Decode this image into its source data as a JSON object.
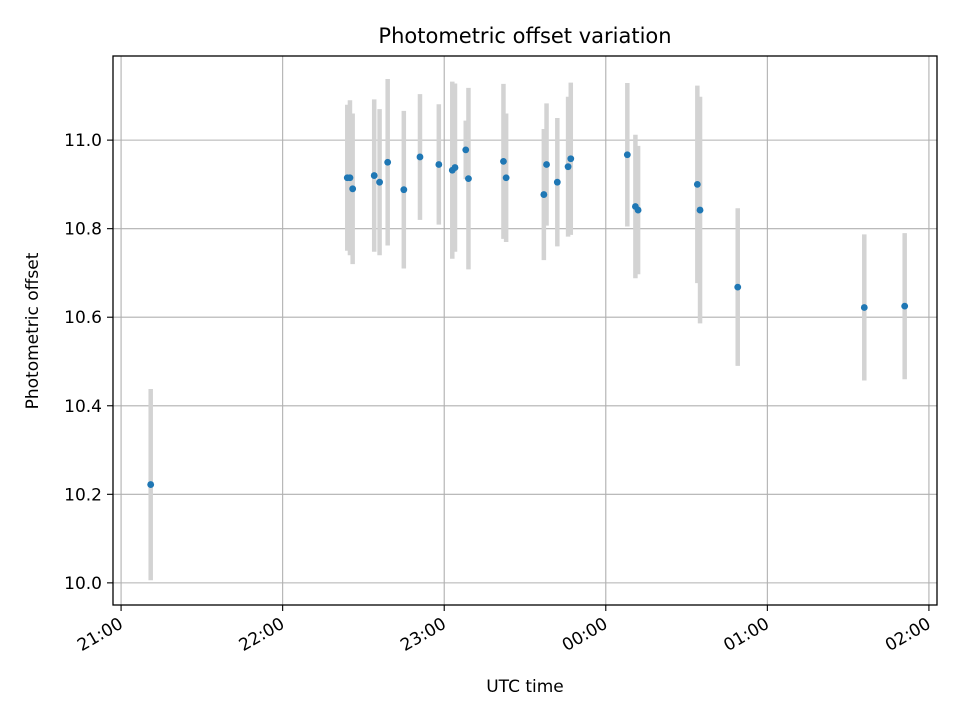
{
  "chart_data": {
    "type": "scatter",
    "title": "Photometric offset variation",
    "xlabel": "UTC time",
    "ylabel": "Photometric offset",
    "x_ticks": [
      "21:00",
      "22:00",
      "23:00",
      "00:00",
      "01:00",
      "02:00"
    ],
    "y_ticks": [
      "10.0",
      "10.2",
      "10.4",
      "10.6",
      "10.8",
      "11.0"
    ],
    "xlim": [
      "20:57",
      "02:03"
    ],
    "ylim": [
      9.95,
      11.19
    ],
    "grid": true,
    "colors": {
      "point": "#1f77b4",
      "errorbar": "#d3d3d3",
      "grid": "#b0b0b0",
      "axes": "#000000"
    },
    "series": [
      {
        "points": [
          {
            "x": "21:11",
            "y": 10.222,
            "err": 0.216
          },
          {
            "x": "22:24",
            "y": 10.915,
            "err": 0.165
          },
          {
            "x": "22:25",
            "y": 10.915,
            "err": 0.175
          },
          {
            "x": "22:26",
            "y": 10.89,
            "err": 0.17
          },
          {
            "x": "22:34",
            "y": 10.92,
            "err": 0.172
          },
          {
            "x": "22:36",
            "y": 10.905,
            "err": 0.165
          },
          {
            "x": "22:39",
            "y": 10.95,
            "err": 0.188
          },
          {
            "x": "22:45",
            "y": 10.888,
            "err": 0.178
          },
          {
            "x": "22:51",
            "y": 10.962,
            "err": 0.142
          },
          {
            "x": "22:58",
            "y": 10.945,
            "err": 0.136
          },
          {
            "x": "23:03",
            "y": 10.932,
            "err": 0.2
          },
          {
            "x": "23:04",
            "y": 10.938,
            "err": 0.19
          },
          {
            "x": "23:08",
            "y": 10.978,
            "err": 0.066
          },
          {
            "x": "23:09",
            "y": 10.913,
            "err": 0.205
          },
          {
            "x": "23:22",
            "y": 10.952,
            "err": 0.175
          },
          {
            "x": "23:23",
            "y": 10.915,
            "err": 0.145
          },
          {
            "x": "23:37",
            "y": 10.877,
            "err": 0.148
          },
          {
            "x": "23:38",
            "y": 10.945,
            "err": 0.138
          },
          {
            "x": "23:42",
            "y": 10.905,
            "err": 0.145
          },
          {
            "x": "23:46",
            "y": 10.94,
            "err": 0.158
          },
          {
            "x": "23:47",
            "y": 10.958,
            "err": 0.172
          },
          {
            "x": "00:08",
            "y": 10.967,
            "err": 0.162
          },
          {
            "x": "00:11",
            "y": 10.85,
            "err": 0.162
          },
          {
            "x": "00:12",
            "y": 10.842,
            "err": 0.145
          },
          {
            "x": "00:34",
            "y": 10.9,
            "err": 0.223
          },
          {
            "x": "00:35",
            "y": 10.842,
            "err": 0.256
          },
          {
            "x": "00:49",
            "y": 10.668,
            "err": 0.178
          },
          {
            "x": "01:36",
            "y": 10.622,
            "err": 0.165
          },
          {
            "x": "01:51",
            "y": 10.625,
            "err": 0.165
          }
        ]
      }
    ]
  }
}
